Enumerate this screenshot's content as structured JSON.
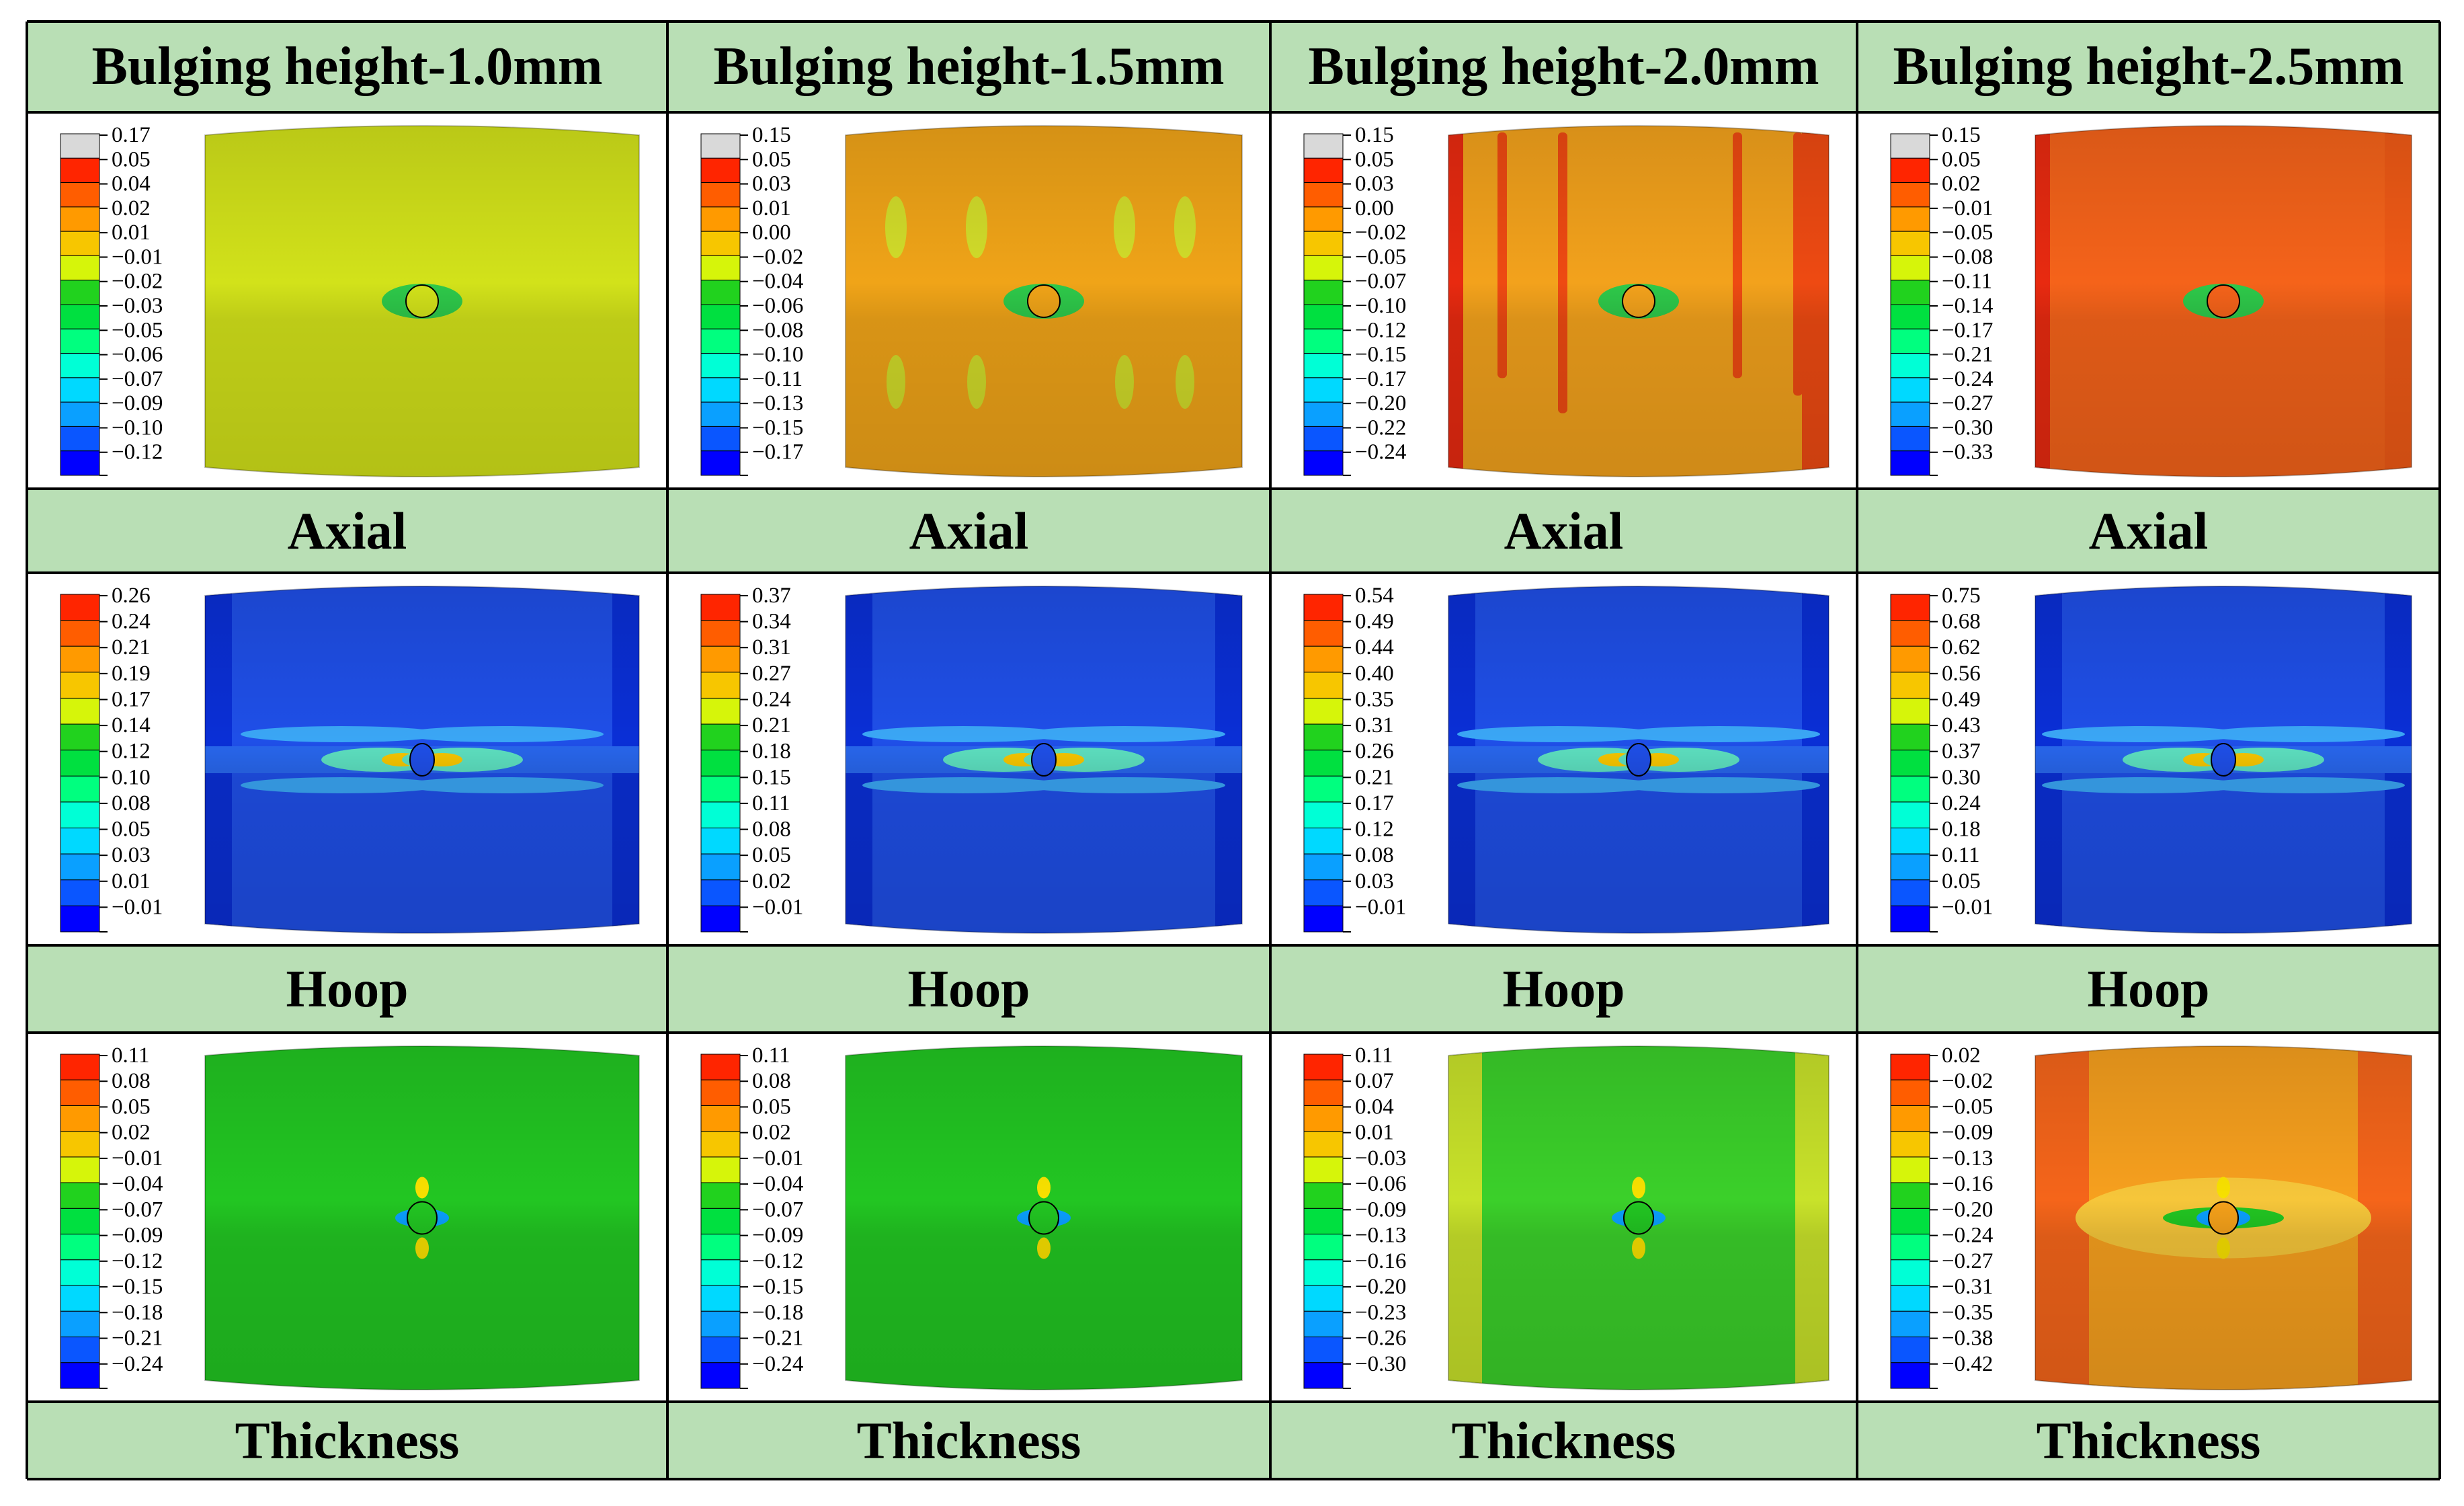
{
  "columns": [
    {
      "header": "Bulging height-1.0mm"
    },
    {
      "header": "Bulging height-1.5mm"
    },
    {
      "header": "Bulging height-2.0mm"
    },
    {
      "header": "Bulging height-2.5mm"
    }
  ],
  "row_labels": [
    "Axial",
    "Hoop",
    "Thickness"
  ],
  "colors": {
    "header_bg": "#b9dfb5",
    "grid_line": "#000000",
    "legend_scale": [
      "#0000ff",
      "#0a56ff",
      "#0aa0ff",
      "#00d9ff",
      "#00ffd6",
      "#00ff7f",
      "#00e040",
      "#21d21e",
      "#d6f50a",
      "#f7c600",
      "#ff9a00",
      "#ff5d00",
      "#ff2500",
      "#d9d9d9"
    ]
  },
  "panels": [
    [
      {
        "name": "axial-1.0mm",
        "legend": [
          "0.17",
          "0.05",
          "0.04",
          "0.02",
          "0.01",
          "−0.01",
          "−0.02",
          "−0.03",
          "−0.05",
          "−0.06",
          "−0.07",
          "−0.09",
          "−0.10",
          "−0.12"
        ],
        "base_color": "#d2e21a",
        "overflow_top": true
      },
      {
        "name": "axial-1.5mm",
        "legend": [
          "0.15",
          "0.05",
          "0.03",
          "0.01",
          "0.00",
          "−0.02",
          "−0.04",
          "−0.06",
          "−0.08",
          "−0.10",
          "−0.11",
          "−0.13",
          "−0.15",
          "−0.17"
        ],
        "base_color": "#f0a418",
        "overflow_top": true
      },
      {
        "name": "axial-2.0mm",
        "legend": [
          "0.15",
          "0.05",
          "0.03",
          "0.00",
          "−0.02",
          "−0.05",
          "−0.07",
          "−0.10",
          "−0.12",
          "−0.15",
          "−0.17",
          "−0.20",
          "−0.22",
          "−0.24"
        ],
        "base_color": "#f3a21c",
        "overflow_top": true
      },
      {
        "name": "axial-2.5mm",
        "legend": [
          "0.15",
          "0.05",
          "0.02",
          "−0.01",
          "−0.05",
          "−0.08",
          "−0.11",
          "−0.14",
          "−0.17",
          "−0.21",
          "−0.24",
          "−0.27",
          "−0.30",
          "−0.33"
        ],
        "base_color": "#f5631a",
        "overflow_top": true
      }
    ],
    [
      {
        "name": "hoop-1.0mm",
        "legend": [
          "0.26",
          "0.24",
          "0.21",
          "0.19",
          "0.17",
          "0.14",
          "0.12",
          "0.10",
          "0.08",
          "0.05",
          "0.03",
          "0.01",
          "−0.01"
        ],
        "base_color": "#1f4fe8",
        "overflow_top": false
      },
      {
        "name": "hoop-1.5mm",
        "legend": [
          "0.37",
          "0.34",
          "0.31",
          "0.27",
          "0.24",
          "0.21",
          "0.18",
          "0.15",
          "0.11",
          "0.08",
          "0.05",
          "0.02",
          "−0.01"
        ],
        "base_color": "#1f4fe8",
        "overflow_top": false
      },
      {
        "name": "hoop-2.0mm",
        "legend": [
          "0.54",
          "0.49",
          "0.44",
          "0.40",
          "0.35",
          "0.31",
          "0.26",
          "0.21",
          "0.17",
          "0.12",
          "0.08",
          "0.03",
          "−0.01"
        ],
        "base_color": "#1f4fe8",
        "overflow_top": false
      },
      {
        "name": "hoop-2.5mm",
        "legend": [
          "0.75",
          "0.68",
          "0.62",
          "0.56",
          "0.49",
          "0.43",
          "0.37",
          "0.30",
          "0.24",
          "0.18",
          "0.11",
          "0.05",
          "−0.01"
        ],
        "base_color": "#1f4fe8",
        "overflow_top": false
      }
    ],
    [
      {
        "name": "thickness-1.0mm",
        "legend": [
          "0.11",
          "0.08",
          "0.05",
          "0.02",
          "−0.01",
          "−0.04",
          "−0.07",
          "−0.09",
          "−0.12",
          "−0.15",
          "−0.18",
          "−0.21",
          "−0.24"
        ],
        "base_color": "#22c622",
        "overflow_top": false
      },
      {
        "name": "thickness-1.5mm",
        "legend": [
          "0.11",
          "0.08",
          "0.05",
          "0.02",
          "−0.01",
          "−0.04",
          "−0.07",
          "−0.09",
          "−0.12",
          "−0.15",
          "−0.18",
          "−0.21",
          "−0.24"
        ],
        "base_color": "#22c622",
        "overflow_top": false
      },
      {
        "name": "thickness-2.0mm",
        "legend": [
          "0.11",
          "0.07",
          "0.04",
          "0.01",
          "−0.03",
          "−0.06",
          "−0.09",
          "−0.13",
          "−0.16",
          "−0.20",
          "−0.23",
          "−0.26",
          "−0.30"
        ],
        "base_color": "#3bd02a",
        "overflow_top": false
      },
      {
        "name": "thickness-2.5mm",
        "legend": [
          "0.02",
          "−0.02",
          "−0.05",
          "−0.09",
          "−0.13",
          "−0.16",
          "−0.20",
          "−0.24",
          "−0.27",
          "−0.31",
          "−0.35",
          "−0.38",
          "−0.42"
        ],
        "base_color": "#f5651a",
        "overflow_top": false
      }
    ]
  ]
}
